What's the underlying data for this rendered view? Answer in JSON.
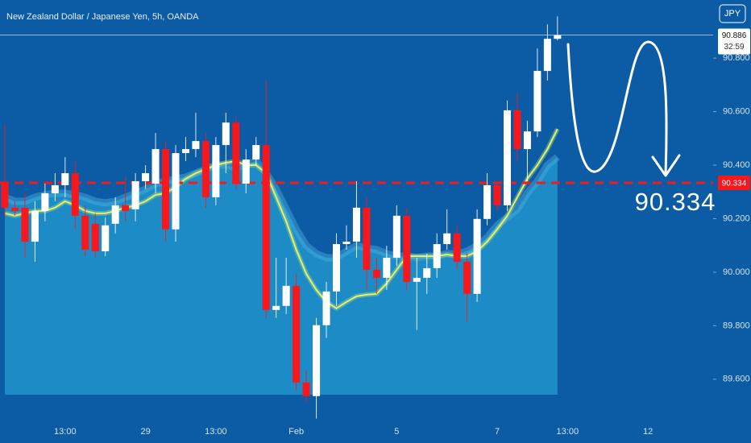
{
  "chart_data": {
    "type": "candlestick",
    "title": "New Zealand Dollar / Japanese Yen, 5h, OANDA",
    "currency_button": "JPY",
    "countdown": "32:59",
    "up_color": "#ffffff",
    "down_color": "#f7171d",
    "background": "#0b5ca5",
    "ylim": [
      89.437,
      91.017
    ],
    "yticks": [
      {
        "value": 89.6,
        "label": "89.600"
      },
      {
        "value": 89.8,
        "label": "89.800"
      },
      {
        "value": 90.0,
        "label": "90.000"
      },
      {
        "value": 90.2,
        "label": "90.200"
      },
      {
        "value": 90.4,
        "label": "90.400"
      },
      {
        "value": 90.6,
        "label": "90.600"
      },
      {
        "value": 90.8,
        "label": "90.800"
      }
    ],
    "categories": [
      null,
      null,
      null,
      null,
      null,
      null,
      "13:00",
      null,
      null,
      null,
      null,
      null,
      null,
      null,
      "29",
      null,
      null,
      null,
      null,
      null,
      null,
      "13:00",
      null,
      null,
      null,
      null,
      null,
      null,
      null,
      "Feb",
      null,
      null,
      null,
      null,
      null,
      null,
      null,
      null,
      null,
      "5",
      null,
      null,
      null,
      null,
      null,
      null,
      null,
      null,
      null,
      "7",
      null,
      null,
      null,
      null,
      null,
      null,
      "13:00",
      null,
      null,
      null,
      null,
      null,
      null,
      null,
      "12",
      null,
      null,
      null,
      null,
      null
    ],
    "open": [
      90.331,
      90.241,
      90.241,
      90.114,
      90.229,
      90.295,
      90.325,
      90.37,
      90.211,
      90.181,
      90.078,
      90.181,
      90.25,
      90.235,
      90.34,
      90.331,
      90.46,
      90.16,
      90.445,
      90.46,
      90.49,
      90.28,
      90.475,
      90.559,
      90.331,
      90.421,
      90.475,
      89.859,
      89.874,
      89.949,
      89.588,
      89.537,
      89.802,
      89.928,
      90.105,
      90.114,
      90.241,
      90.009,
      89.979,
      90.054,
      90.211,
      89.964,
      89.979,
      90.015,
      90.105,
      90.145,
      90.039,
      89.919,
      90.199,
      90.325,
      90.25,
      90.605,
      90.46,
      90.526,
      90.752,
      90.872,
      null,
      null,
      null,
      null,
      null,
      null,
      null,
      null,
      null,
      null,
      null,
      null,
      null,
      null
    ],
    "high": [
      90.55,
      90.265,
      90.295,
      90.265,
      90.331,
      90.37,
      90.43,
      90.415,
      90.25,
      90.22,
      90.205,
      90.28,
      90.355,
      90.37,
      90.4,
      90.52,
      90.49,
      90.475,
      90.505,
      90.596,
      90.52,
      90.505,
      90.596,
      90.581,
      90.46,
      90.505,
      90.716,
      90.054,
      90.054,
      89.994,
      89.633,
      89.829,
      89.964,
      90.145,
      90.175,
      90.34,
      90.28,
      90.054,
      90.099,
      90.25,
      90.241,
      90.054,
      90.069,
      90.145,
      90.235,
      90.175,
      90.069,
      90.235,
      90.37,
      90.34,
      90.641,
      90.671,
      90.566,
      90.836,
      90.926,
      90.956,
      null,
      null,
      null,
      null,
      null,
      null,
      null,
      null,
      null,
      null,
      null,
      null,
      null,
      null
    ],
    "low": [
      90.205,
      90.211,
      90.054,
      90.039,
      90.19,
      90.265,
      90.28,
      90.16,
      90.06,
      90.054,
      90.06,
      90.145,
      90.19,
      90.19,
      90.31,
      90.295,
      90.114,
      90.114,
      90.415,
      90.43,
      90.241,
      90.25,
      90.37,
      90.31,
      90.295,
      90.4,
      89.829,
      89.829,
      89.844,
      89.558,
      89.513,
      89.453,
      89.754,
      89.874,
      90.084,
      90.054,
      89.934,
      89.919,
      89.934,
      90.024,
      89.934,
      89.784,
      89.919,
      89.979,
      90.084,
      90.009,
      89.814,
      89.889,
      90.175,
      90.229,
      90.229,
      90.415,
      90.34,
      90.505,
      90.716,
      90.866,
      null,
      null,
      null,
      null,
      null,
      null,
      null,
      null,
      null,
      null,
      null,
      null,
      null,
      null
    ],
    "close": [
      90.241,
      90.229,
      90.114,
      90.229,
      90.295,
      90.325,
      90.37,
      90.211,
      90.084,
      90.078,
      90.175,
      90.25,
      90.229,
      90.34,
      90.37,
      90.46,
      90.16,
      90.445,
      90.46,
      90.49,
      90.28,
      90.475,
      90.559,
      90.331,
      90.421,
      90.475,
      89.859,
      89.874,
      89.949,
      89.588,
      89.537,
      89.802,
      89.928,
      90.105,
      90.114,
      90.241,
      90.009,
      89.979,
      90.054,
      90.211,
      89.964,
      89.979,
      90.015,
      90.105,
      90.145,
      90.039,
      89.919,
      90.199,
      90.325,
      90.25,
      90.605,
      90.46,
      90.526,
      90.752,
      90.872,
      90.886,
      null,
      null,
      null,
      null,
      null,
      null,
      null,
      null,
      null,
      null,
      null,
      null,
      null,
      null
    ],
    "series": [
      {
        "style": "area",
        "color": "#1d8cc6",
        "values": [
          90.28,
          90.265,
          90.265,
          90.28,
          90.289,
          90.295,
          90.295,
          90.289,
          90.28,
          90.265,
          90.259,
          90.265,
          90.28,
          90.295,
          90.31,
          90.331,
          90.34,
          90.349,
          90.355,
          90.37,
          90.385,
          90.4,
          90.4,
          90.391,
          90.4,
          90.415,
          90.37,
          90.31,
          90.235,
          90.16,
          90.099,
          90.069,
          90.054,
          90.054,
          90.078,
          90.099,
          90.09,
          90.084,
          90.069,
          90.06,
          90.06,
          90.054,
          90.06,
          90.06,
          90.069,
          90.069,
          90.078,
          90.099,
          90.129,
          90.175,
          90.205,
          90.235,
          90.295,
          90.34,
          90.4,
          90.43,
          null,
          null,
          null,
          null,
          null,
          null,
          null,
          null,
          null,
          null,
          null,
          null,
          null,
          null
        ]
      },
      {
        "style": "line",
        "color": "#f3ea5f",
        "values": [
          90.22,
          90.211,
          90.22,
          90.229,
          90.229,
          90.241,
          90.265,
          90.25,
          90.229,
          90.22,
          90.22,
          90.229,
          90.241,
          90.25,
          90.265,
          90.289,
          90.295,
          90.319,
          90.349,
          90.37,
          90.385,
          90.4,
          90.409,
          90.415,
          90.4,
          90.4,
          90.37,
          90.28,
          90.19,
          90.084,
          89.994,
          89.934,
          89.889,
          89.865,
          89.889,
          89.91,
          89.916,
          89.919,
          89.958,
          90.009,
          90.06,
          90.06,
          90.06,
          90.06,
          90.066,
          90.06,
          90.06,
          90.078,
          90.114,
          90.16,
          90.211,
          90.28,
          90.349,
          90.4,
          90.46,
          90.535,
          null,
          null,
          null,
          null,
          null,
          null,
          null,
          null,
          null,
          null,
          null,
          null,
          null,
          null
        ]
      }
    ],
    "level": {
      "value": 90.334,
      "color": "#f7171d"
    }
  }
}
